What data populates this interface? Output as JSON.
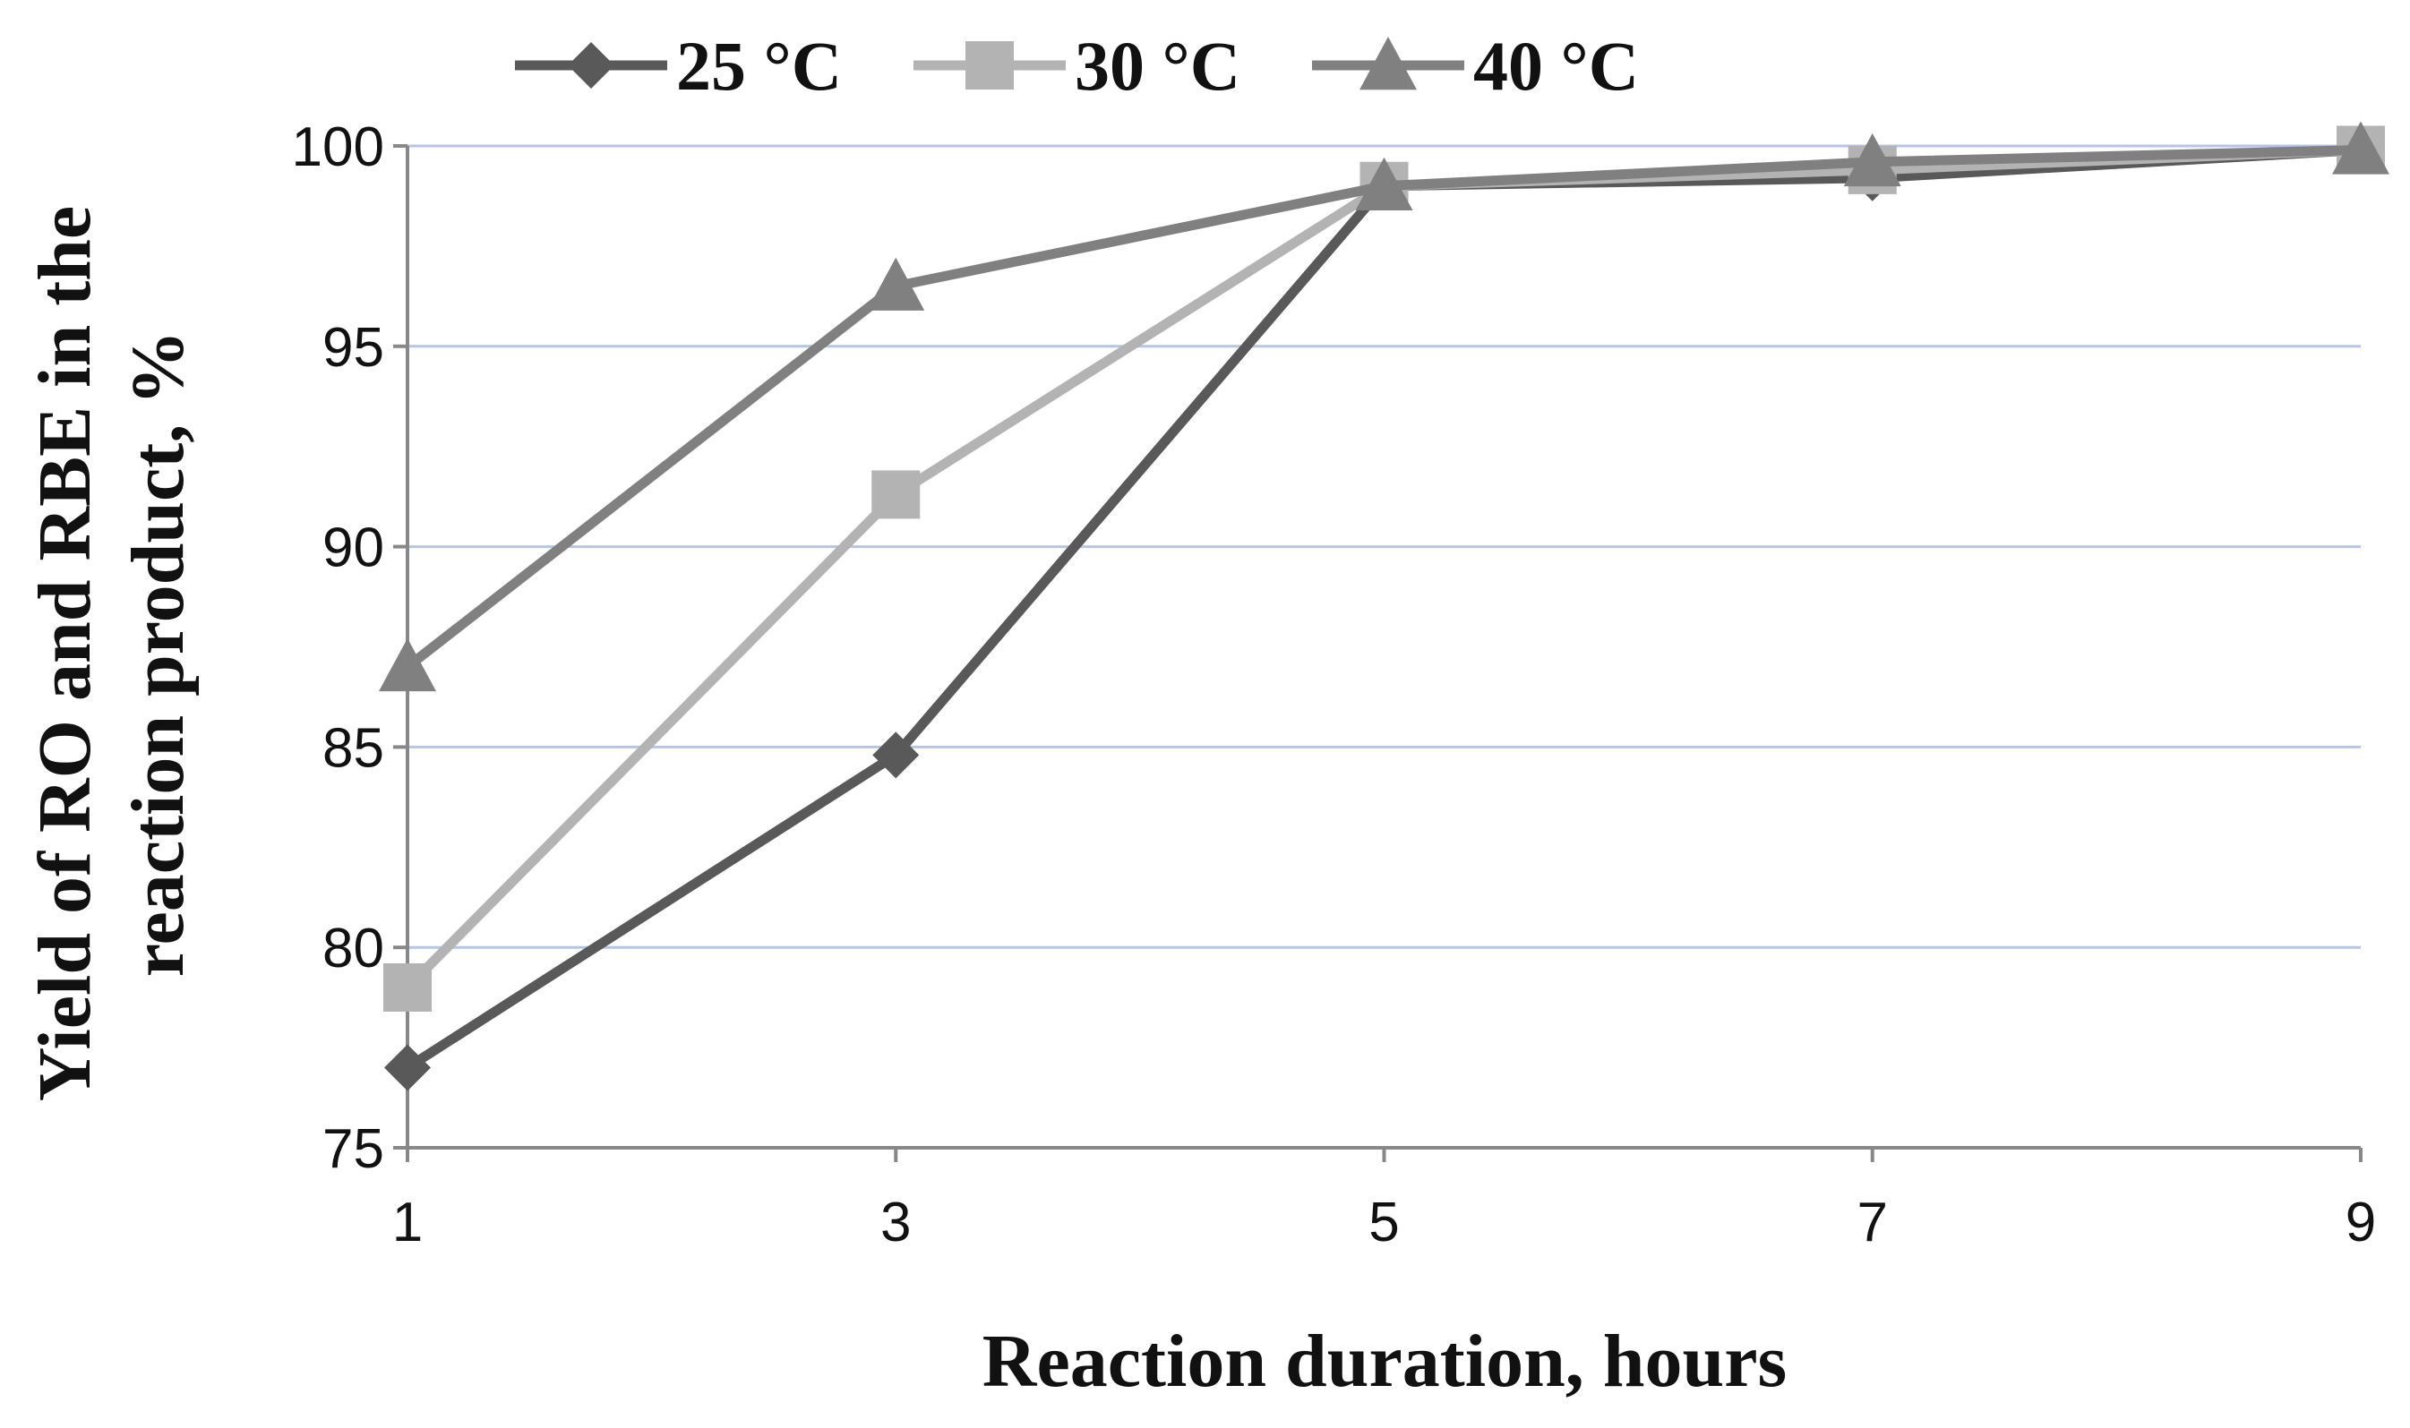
{
  "chart_data": {
    "type": "line",
    "title": "",
    "xlabel": "Reaction duration, hours",
    "ylabel_lines": [
      "Yield of RO and RBE in the",
      "reaction product, %"
    ],
    "x": [
      1,
      3,
      5,
      7,
      9
    ],
    "x_ticks": [
      "1",
      "3",
      "5",
      "7",
      "9"
    ],
    "xlim": [
      1,
      9
    ],
    "ylim": [
      75,
      100
    ],
    "y_ticks": [
      75,
      80,
      85,
      90,
      95,
      100
    ],
    "y_tick_labels": [
      "75",
      "80",
      "85",
      "90",
      "95",
      "100"
    ],
    "grid": true,
    "legend_position": "top",
    "series": [
      {
        "name": "25 °C",
        "values": [
          77.0,
          84.8,
          99.0,
          99.2,
          99.9
        ],
        "color": "#595959",
        "marker": "diamond"
      },
      {
        "name": "30 °C",
        "values": [
          79.0,
          91.3,
          99.0,
          99.4,
          99.9
        ],
        "color": "#b3b3b3",
        "marker": "square"
      },
      {
        "name": "40 °C",
        "values": [
          87.0,
          96.5,
          99.0,
          99.6,
          99.9
        ],
        "color": "#808080",
        "marker": "triangle"
      }
    ],
    "gridline_color": "#b4c6e7",
    "axis_color": "#888888"
  }
}
